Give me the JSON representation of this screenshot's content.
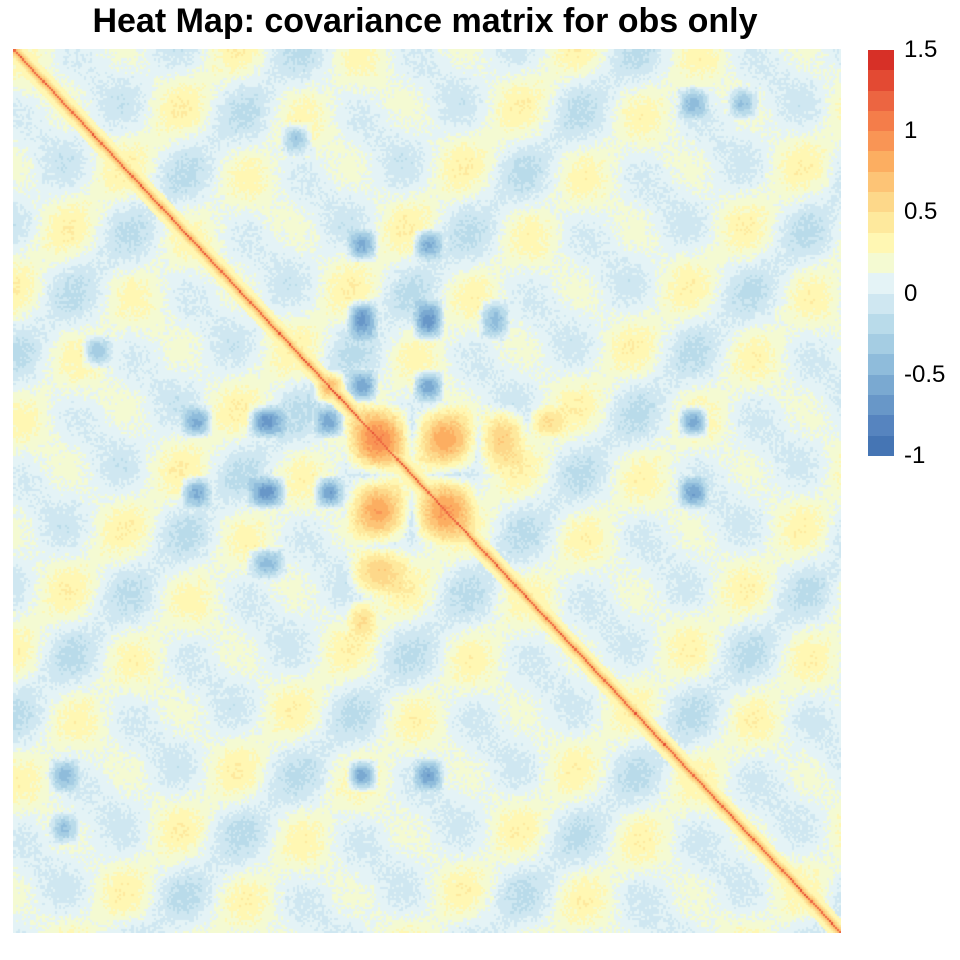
{
  "chart_data": {
    "type": "heatmap",
    "title": "Heat Map: covariance matrix for obs only",
    "xlabel": "",
    "ylabel": "",
    "value_range": [
      -1,
      1.5
    ],
    "colorbar": {
      "ticks": [
        1.5,
        1,
        0.5,
        0,
        -0.5,
        -1
      ],
      "tick_labels": [
        "1.5",
        "1",
        "0.5",
        "0",
        "-0.5",
        "-1"
      ],
      "colors_top_to_bottom": [
        "#d73027",
        "#e34a33",
        "#ec6541",
        "#f47d4a",
        "#f99555",
        "#fcae61",
        "#fdc476",
        "#fdd88a",
        "#fee99d",
        "#fff7b3",
        "#f4fad2",
        "#e4f3f6",
        "#cfe7f1",
        "#b9dbea",
        "#a5cde3",
        "#8fbcdb",
        "#7aa9d1",
        "#6897c8",
        "#5684bf",
        "#4575b4"
      ]
    },
    "matrix": {
      "size": 400,
      "diagonal_value": 1.2,
      "background_value": 0.1,
      "blocks": [
        {
          "rows": [
            0.4,
            0.48
          ],
          "cols": [
            0.4,
            0.48
          ],
          "value": 1.0
        },
        {
          "rows": [
            0.48,
            0.56
          ],
          "cols": [
            0.48,
            0.56
          ],
          "value": 0.9
        },
        {
          "rows": [
            0.4,
            0.48
          ],
          "cols": [
            0.48,
            0.56
          ],
          "value": 0.85
        },
        {
          "rows": [
            0.48,
            0.56
          ],
          "cols": [
            0.4,
            0.48
          ],
          "value": 0.85
        },
        {
          "rows": [
            0.36,
            0.4
          ],
          "cols": [
            0.36,
            0.4
          ],
          "value": 0.75
        },
        {
          "rows": [
            0.56,
            0.62
          ],
          "cols": [
            0.4,
            0.48
          ],
          "value": 0.6
        },
        {
          "rows": [
            0.4,
            0.48
          ],
          "cols": [
            0.56,
            0.62
          ],
          "value": 0.6
        },
        {
          "rows": [
            0.2,
            0.24
          ],
          "cols": [
            0.4,
            0.44
          ],
          "value": -0.55
        },
        {
          "rows": [
            0.28,
            0.33
          ],
          "cols": [
            0.4,
            0.44
          ],
          "value": -0.7
        },
        {
          "rows": [
            0.36,
            0.4
          ],
          "cols": [
            0.4,
            0.44
          ],
          "value": -0.6
        },
        {
          "rows": [
            0.2,
            0.24
          ],
          "cols": [
            0.48,
            0.52
          ],
          "value": -0.55
        },
        {
          "rows": [
            0.28,
            0.33
          ],
          "cols": [
            0.48,
            0.52
          ],
          "value": -0.7
        },
        {
          "rows": [
            0.36,
            0.4
          ],
          "cols": [
            0.48,
            0.52
          ],
          "value": -0.6
        },
        {
          "rows": [
            0.4,
            0.44
          ],
          "cols": [
            0.2,
            0.24
          ],
          "value": -0.55
        },
        {
          "rows": [
            0.4,
            0.44
          ],
          "cols": [
            0.28,
            0.33
          ],
          "value": -0.7
        },
        {
          "rows": [
            0.4,
            0.44
          ],
          "cols": [
            0.36,
            0.4
          ],
          "value": -0.6
        },
        {
          "rows": [
            0.48,
            0.52
          ],
          "cols": [
            0.2,
            0.24
          ],
          "value": -0.55
        },
        {
          "rows": [
            0.48,
            0.52
          ],
          "cols": [
            0.28,
            0.33
          ],
          "value": -0.7
        },
        {
          "rows": [
            0.48,
            0.52
          ],
          "cols": [
            0.36,
            0.4
          ],
          "value": -0.6
        },
        {
          "rows": [
            0.4,
            0.44
          ],
          "cols": [
            0.8,
            0.84
          ],
          "value": -0.6
        },
        {
          "rows": [
            0.48,
            0.52
          ],
          "cols": [
            0.8,
            0.84
          ],
          "value": -0.6
        },
        {
          "rows": [
            0.8,
            0.84
          ],
          "cols": [
            0.4,
            0.44
          ],
          "value": -0.6
        },
        {
          "rows": [
            0.8,
            0.84
          ],
          "cols": [
            0.48,
            0.52
          ],
          "value": -0.6
        },
        {
          "rows": [
            0.28,
            0.33
          ],
          "cols": [
            0.56,
            0.6
          ],
          "value": -0.45
        },
        {
          "rows": [
            0.56,
            0.6
          ],
          "cols": [
            0.28,
            0.33
          ],
          "value": -0.45
        },
        {
          "rows": [
            0.04,
            0.08
          ],
          "cols": [
            0.8,
            0.84
          ],
          "value": -0.45
        },
        {
          "rows": [
            0.8,
            0.84
          ],
          "cols": [
            0.04,
            0.08
          ],
          "value": -0.45
        },
        {
          "rows": [
            0.04,
            0.08
          ],
          "cols": [
            0.86,
            0.9
          ],
          "value": -0.4
        },
        {
          "rows": [
            0.86,
            0.9
          ],
          "cols": [
            0.04,
            0.08
          ],
          "value": -0.4
        },
        {
          "rows": [
            0.32,
            0.36
          ],
          "cols": [
            0.08,
            0.12
          ],
          "value": -0.35
        },
        {
          "rows": [
            0.08,
            0.12
          ],
          "cols": [
            0.32,
            0.36
          ],
          "value": -0.35
        },
        {
          "rows": [
            0.62,
            0.67
          ],
          "cols": [
            0.4,
            0.44
          ],
          "value": 0.5
        },
        {
          "rows": [
            0.4,
            0.44
          ],
          "cols": [
            0.62,
            0.67
          ],
          "value": 0.5
        }
      ]
    }
  }
}
